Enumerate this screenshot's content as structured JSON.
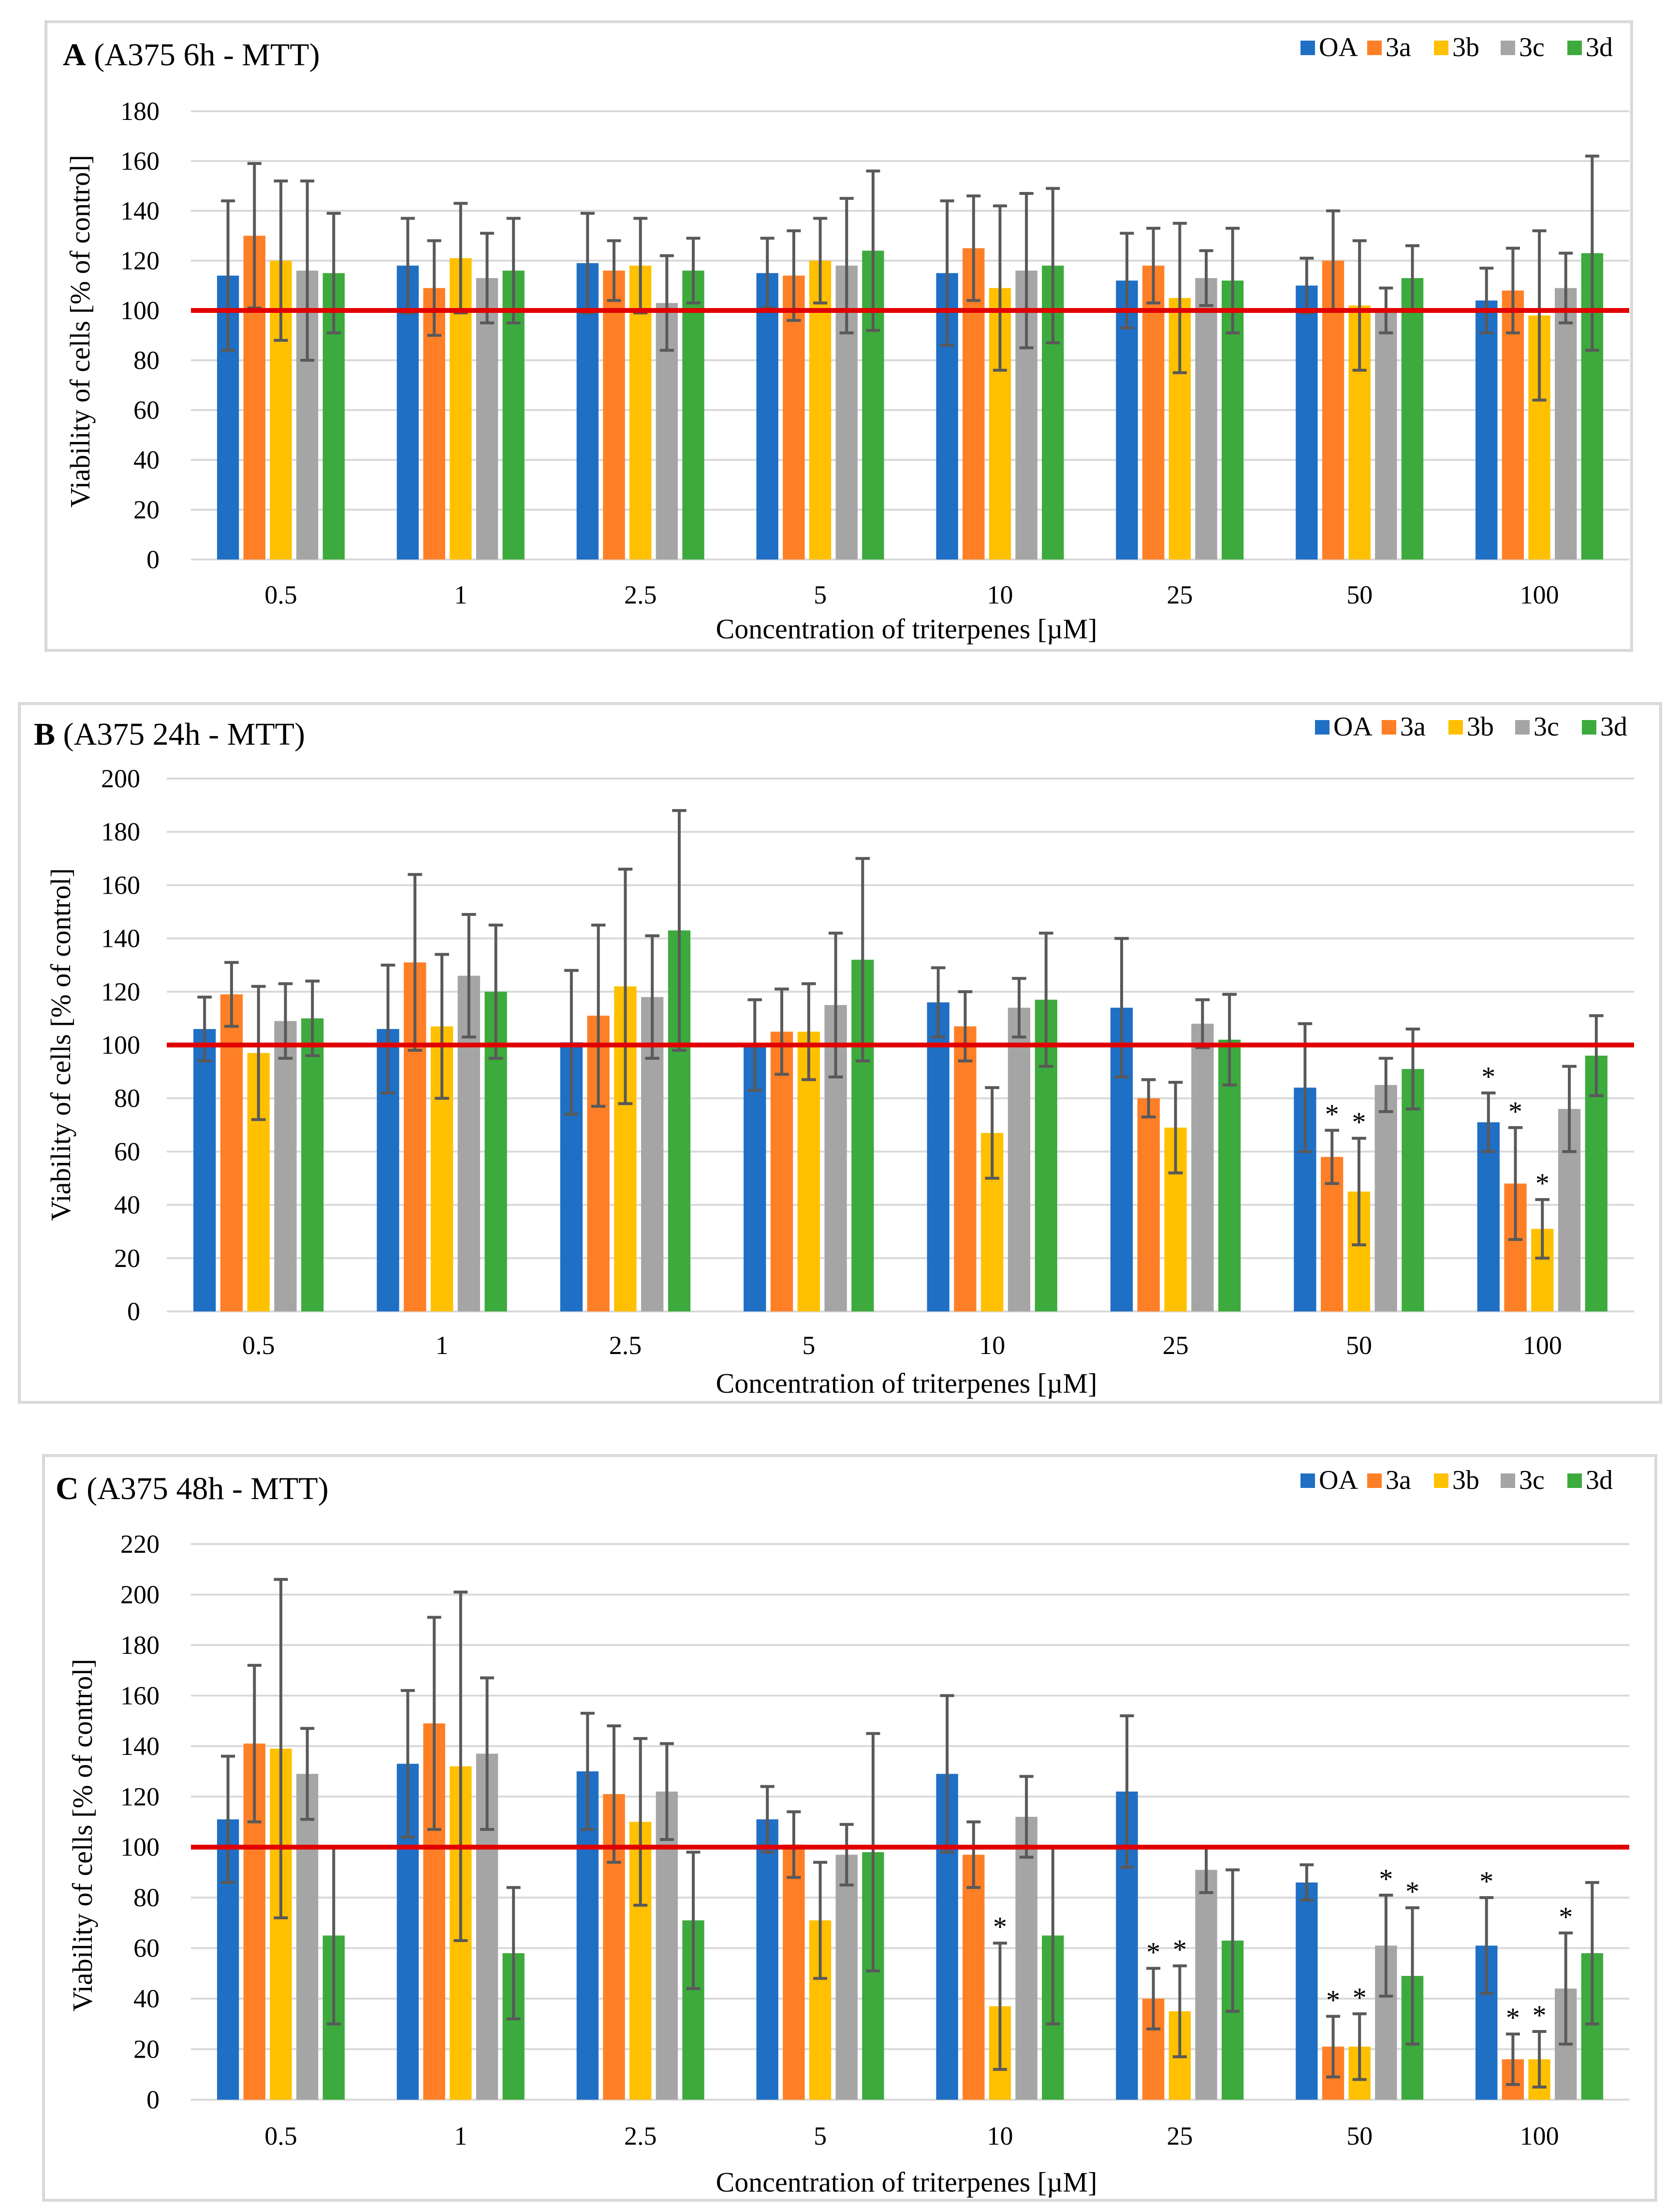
{
  "colors": {
    "OA": "#1f6fc5",
    "3a": "#ff7f27",
    "3b": "#ffc000",
    "3c": "#a5a5a5",
    "3d": "#3daa3d",
    "control_line": "#e00000",
    "error_bar": "#595959",
    "grid": "#d9d9d9",
    "panel_border": "#d9d9d9"
  },
  "chart_data": [
    {
      "type": "bar",
      "panel_letter": "A",
      "title": "(A375 6h - MTT)",
      "xlabel": "Concentration of triterpenes [µM]",
      "ylabel": "Viability of cells [% of control]",
      "ylim": [
        0,
        180
      ],
      "yticks": [
        "0",
        "20",
        "40",
        "60",
        "80",
        "100",
        "120",
        "140",
        "160",
        "180"
      ],
      "categories": [
        "0.5",
        "1",
        "2.5",
        "5",
        "10",
        "25",
        "50",
        "100"
      ],
      "control_line": 100,
      "legend": [
        "OA",
        "3a",
        "3b",
        "3c",
        "3d"
      ],
      "series": [
        {
          "name": "OA",
          "values": [
            114,
            118,
            119,
            115,
            115,
            112,
            110,
            104
          ],
          "errors": [
            30,
            19,
            20,
            14,
            29,
            19,
            11,
            13
          ],
          "stars": [
            0,
            0,
            0,
            0,
            0,
            0,
            0,
            0
          ]
        },
        {
          "name": "3a",
          "values": [
            130,
            109,
            116,
            114,
            125,
            118,
            120,
            108
          ],
          "errors": [
            29,
            19,
            12,
            18,
            21,
            15,
            20,
            17
          ],
          "stars": [
            0,
            0,
            0,
            0,
            0,
            0,
            0,
            0
          ]
        },
        {
          "name": "3b",
          "values": [
            120,
            121,
            118,
            120,
            109,
            105,
            102,
            98
          ],
          "errors": [
            32,
            22,
            19,
            17,
            33,
            30,
            26,
            34
          ],
          "stars": [
            0,
            0,
            0,
            0,
            0,
            0,
            0,
            0
          ]
        },
        {
          "name": "3c",
          "values": [
            116,
            113,
            103,
            118,
            116,
            113,
            100,
            109
          ],
          "errors": [
            36,
            18,
            19,
            27,
            31,
            11,
            9,
            14
          ],
          "stars": [
            0,
            0,
            0,
            0,
            0,
            0,
            0,
            0
          ]
        },
        {
          "name": "3d",
          "values": [
            115,
            116,
            116,
            124,
            118,
            112,
            113,
            123
          ],
          "errors": [
            24,
            21,
            13,
            32,
            31,
            21,
            13,
            39
          ],
          "stars": [
            0,
            0,
            0,
            0,
            0,
            0,
            0,
            0
          ]
        }
      ]
    },
    {
      "type": "bar",
      "panel_letter": "B",
      "title": "(A375 24h - MTT)",
      "xlabel": "Concentration of triterpenes [µM]",
      "ylabel": "Viability of cells [% of control]",
      "ylim": [
        0,
        200
      ],
      "yticks": [
        "0",
        "20",
        "40",
        "60",
        "80",
        "100",
        "120",
        "140",
        "160",
        "180",
        "200"
      ],
      "categories": [
        "0.5",
        "1",
        "2.5",
        "5",
        "10",
        "25",
        "50",
        "100"
      ],
      "control_line": 100,
      "legend": [
        "OA",
        "3a",
        "3b",
        "3c",
        "3d"
      ],
      "series": [
        {
          "name": "OA",
          "values": [
            106,
            106,
            101,
            100,
            116,
            114,
            84,
            71
          ],
          "errors": [
            12,
            24,
            27,
            17,
            13,
            26,
            24,
            11
          ],
          "stars": [
            0,
            0,
            0,
            0,
            0,
            0,
            0,
            1
          ]
        },
        {
          "name": "3a",
          "values": [
            119,
            131,
            111,
            105,
            107,
            80,
            58,
            48
          ],
          "errors": [
            12,
            33,
            34,
            16,
            13,
            7,
            10,
            21
          ],
          "stars": [
            0,
            0,
            0,
            0,
            0,
            0,
            1,
            1
          ]
        },
        {
          "name": "3b",
          "values": [
            97,
            107,
            122,
            105,
            67,
            69,
            45,
            31
          ],
          "errors": [
            25,
            27,
            44,
            18,
            17,
            17,
            20,
            11
          ],
          "stars": [
            0,
            0,
            0,
            0,
            0,
            0,
            1,
            1
          ]
        },
        {
          "name": "3c",
          "values": [
            109,
            126,
            118,
            115,
            114,
            108,
            85,
            76
          ],
          "errors": [
            14,
            23,
            23,
            27,
            11,
            9,
            10,
            16
          ],
          "stars": [
            0,
            0,
            0,
            0,
            0,
            0,
            0,
            0
          ]
        },
        {
          "name": "3d",
          "values": [
            110,
            120,
            143,
            132,
            117,
            102,
            91,
            96
          ],
          "errors": [
            14,
            25,
            45,
            38,
            25,
            17,
            15,
            15
          ],
          "stars": [
            0,
            0,
            0,
            0,
            0,
            0,
            0,
            0
          ]
        }
      ]
    },
    {
      "type": "bar",
      "panel_letter": "C",
      "title": "(A375 48h - MTT)",
      "xlabel": "Concentration of triterpenes [µM]",
      "ylabel": "Viability of cells [% of control]",
      "ylim": [
        0,
        220
      ],
      "yticks": [
        "0",
        "20",
        "40",
        "60",
        "80",
        "100",
        "120",
        "140",
        "160",
        "180",
        "200",
        "220"
      ],
      "categories": [
        "0.5",
        "1",
        "2.5",
        "5",
        "10",
        "25",
        "50",
        "100"
      ],
      "control_line": 100,
      "legend": [
        "OA",
        "3a",
        "3b",
        "3c",
        "3d"
      ],
      "series": [
        {
          "name": "OA",
          "values": [
            111,
            133,
            130,
            111,
            129,
            122,
            86,
            61
          ],
          "errors": [
            25,
            29,
            23,
            13,
            31,
            30,
            7,
            19
          ],
          "stars": [
            0,
            0,
            0,
            0,
            0,
            0,
            0,
            1
          ]
        },
        {
          "name": "3a",
          "values": [
            141,
            149,
            121,
            101,
            97,
            40,
            21,
            16
          ],
          "errors": [
            31,
            42,
            27,
            13,
            13,
            12,
            12,
            10
          ],
          "stars": [
            0,
            0,
            0,
            0,
            0,
            1,
            1,
            1
          ]
        },
        {
          "name": "3b",
          "values": [
            139,
            132,
            110,
            71,
            37,
            35,
            21,
            16
          ],
          "errors": [
            67,
            69,
            33,
            23,
            25,
            18,
            13,
            11
          ],
          "stars": [
            0,
            0,
            0,
            0,
            1,
            1,
            1,
            1
          ]
        },
        {
          "name": "3c",
          "values": [
            129,
            137,
            122,
            97,
            112,
            91,
            61,
            44
          ],
          "errors": [
            18,
            30,
            19,
            12,
            16,
            9,
            20,
            22
          ],
          "stars": [
            0,
            0,
            0,
            0,
            0,
            0,
            1,
            1
          ]
        },
        {
          "name": "3d",
          "values": [
            65,
            58,
            71,
            98,
            65,
            63,
            49,
            58
          ],
          "errors": [
            35,
            26,
            27,
            47,
            35,
            28,
            27,
            28
          ],
          "stars": [
            0,
            0,
            0,
            0,
            0,
            0,
            1,
            0
          ]
        }
      ]
    }
  ]
}
